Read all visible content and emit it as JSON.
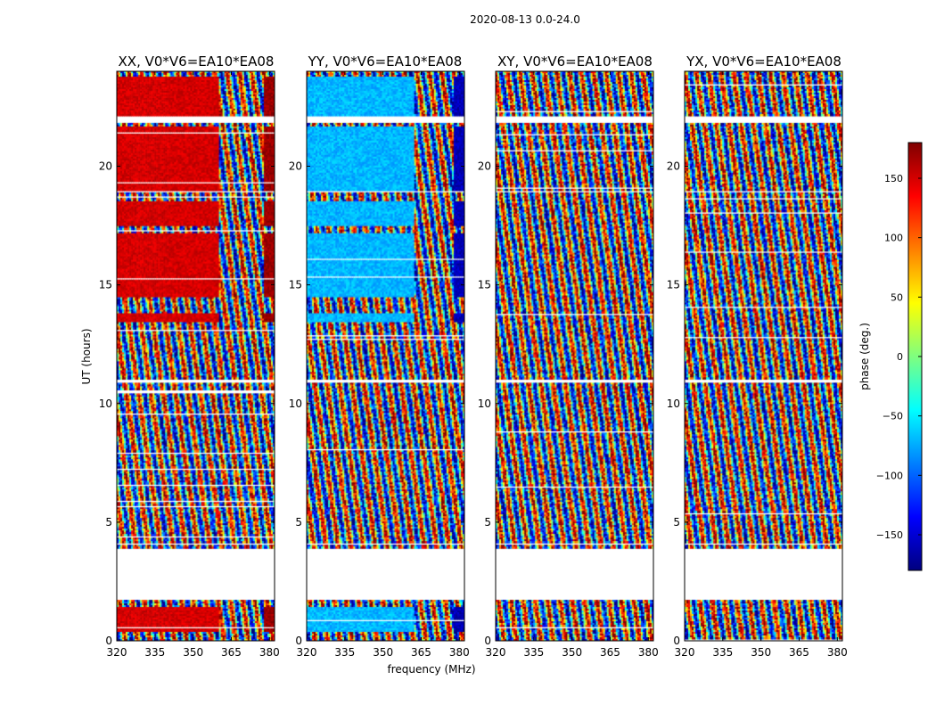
{
  "figure_title": "2020-08-13 0.0-24.0",
  "chart_data": {
    "type": "heatmap",
    "title": "2020-08-13 0.0-24.0",
    "xlabel": "frequency (MHz)",
    "ylabel": "UT (hours)",
    "xlim": [
      320,
      382
    ],
    "ylim": [
      0,
      24
    ],
    "x_ticks": [
      320,
      335,
      350,
      365,
      380
    ],
    "y_ticks": [
      0,
      5,
      10,
      15,
      20
    ],
    "panels": [
      {
        "id": "xx",
        "title": "XX, V0*V6=EA10*EA08",
        "coherent_base_phase": 150,
        "coherent_high_band_phase": 170,
        "coherent_spread": 25,
        "high_band_start_mhz": 360
      },
      {
        "id": "yy",
        "title": "YY, V0*V6=EA10*EA08",
        "coherent_base_phase": -70,
        "coherent_high_band_phase": -160,
        "coherent_spread": 30,
        "high_band_start_mhz": 362
      },
      {
        "id": "xy",
        "title": "XY, V0*V6=EA10*EA08",
        "coherent_base_phase": null
      },
      {
        "id": "yx",
        "title": "YX, V0*V6=EA10*EA08",
        "coherent_base_phase": null
      }
    ],
    "flagged_ut_ranges": [
      [
        1.7,
        3.9
      ],
      [
        21.8,
        22.1
      ],
      [
        10.9,
        11.0
      ],
      [
        18.9,
        19.0
      ],
      [
        4.05,
        4.12
      ]
    ],
    "coherent_ut_ranges": [
      [
        0.4,
        1.4
      ],
      [
        13.4,
        13.8
      ],
      [
        14.5,
        17.2
      ],
      [
        17.5,
        18.5
      ],
      [
        18.9,
        21.7
      ],
      [
        22.1,
        23.8
      ]
    ],
    "colorbar": {
      "label": "phase (deg.)",
      "range": [
        -180,
        180
      ],
      "ticks": [
        -150,
        -100,
        -50,
        0,
        50,
        100,
        150
      ],
      "tick_labels": [
        "−150",
        "−100",
        "−50",
        "0",
        "50",
        "100",
        "150"
      ],
      "colormap": "jet"
    },
    "colors": {
      "jet": [
        "#00007f",
        "#0000ff",
        "#007fff",
        "#00ffff",
        "#7fff7f",
        "#ffff00",
        "#ff7f00",
        "#ff0000",
        "#7f0000"
      ]
    }
  }
}
